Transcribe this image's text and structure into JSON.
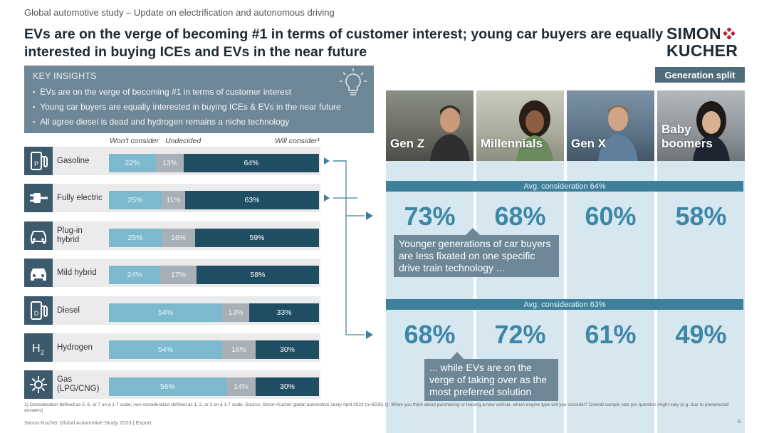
{
  "header": {
    "kicker": "Global automotive study – Update on electrification and autonomous driving",
    "title": "EVs are on the verge of becoming #1 in terms of customer interest; young car buyers are equally interested in buying ICEs and EVs in the near future",
    "logo_line1": "SIMON",
    "logo_line2": "KUCHER",
    "brand_color": "#b5253a"
  },
  "insights": {
    "heading": "KEY INSIGHTS",
    "items": [
      "EVs are on the verge of becoming #1 in terms of customer interest",
      "Young car buyers are equally interested in buying ICEs & EVs in the near future",
      "All agree diesel is dead and hydrogen remains a niche technology"
    ]
  },
  "chart_data": {
    "type": "bar",
    "stacked": true,
    "orientation": "horizontal",
    "column_heads": [
      "Won't consider",
      "Undecided",
      "Will consider¹"
    ],
    "categories": [
      "Gasoline",
      "Fully electric",
      "Plug-in hybrid",
      "Mild hybrid",
      "Diesel",
      "Hydrogen",
      "Gas (LPG/CNG)"
    ],
    "series": [
      {
        "name": "Won't consider",
        "values": [
          22,
          25,
          25,
          24,
          54,
          54,
          56
        ],
        "color": "#7cb9cf"
      },
      {
        "name": "Undecided",
        "values": [
          13,
          11,
          16,
          17,
          13,
          16,
          14
        ],
        "color": "#a7b0b6"
      },
      {
        "name": "Will consider",
        "values": [
          64,
          63,
          59,
          58,
          33,
          30,
          30
        ],
        "color": "#1f4e63"
      }
    ],
    "labels": [
      [
        "22%",
        "13%",
        "64%"
      ],
      [
        "25%",
        "11%",
        "63%"
      ],
      [
        "25%",
        "16%",
        "59%"
      ],
      [
        "24%",
        "17%",
        "58%"
      ],
      [
        "54%",
        "13%",
        "33%"
      ],
      [
        "54%",
        "16%",
        "30%"
      ],
      [
        "56%",
        "14%",
        "30%"
      ]
    ],
    "row_labels": [
      "Gasoline",
      "Fully electric",
      "Plug-in\nhybrid",
      "Mild hybrid",
      "Diesel",
      "Hydrogen",
      "Gas\n(LPG/CNG)"
    ],
    "icons": [
      "fuel-pump-p-icon",
      "plug-icon",
      "car-plug-icon",
      "car-icon",
      "fuel-pump-d-icon",
      "h2-icon",
      "gas-flame-icon"
    ]
  },
  "generations": {
    "title": "Generation split",
    "names": [
      "Gen Z",
      "Millennials",
      "Gen X",
      "Baby\nboomers"
    ],
    "ice": {
      "avg_label": "Avg. consideration 64%",
      "values": [
        "73%",
        "68%",
        "60%",
        "58%"
      ]
    },
    "ev": {
      "avg_label": "Avg. consideration 63%",
      "values": [
        "68%",
        "72%",
        "61%",
        "49%"
      ]
    },
    "callout1": "Younger generations of car buyers are less fixated on one specific drive train technology ...",
    "callout2": "... while EVs are on the verge of taking over as the most preferred solution"
  },
  "footer": {
    "note": "1) Consideration defined as 5, 6, or 7 on a 1-7 scale; non-consideration defined as 1, 2, or 3 on a 1-7 scale. Source: Simon-Kucher global automotive study April 2023 (n=8235) Q: When you think about purchasing or leasing a new vehicle, which engine type will you consider? Overall sample size per question might vary (e.g. due to preselected answers)",
    "source": "Simon-Kucher    Global Automotive Study 2023 | Export",
    "page": "9"
  }
}
